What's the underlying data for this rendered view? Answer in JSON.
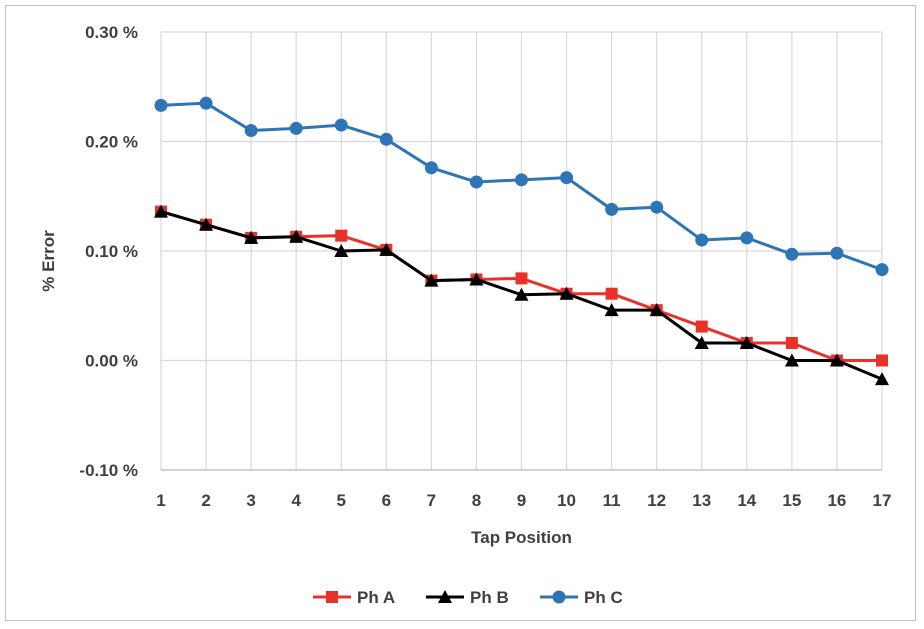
{
  "chart_data": {
    "type": "line",
    "title": "",
    "xlabel": "Tap Position",
    "ylabel": "% Error",
    "x": [
      1,
      2,
      3,
      4,
      5,
      6,
      7,
      8,
      9,
      10,
      11,
      12,
      13,
      14,
      15,
      16,
      17
    ],
    "ylim": [
      -0.1,
      0.3
    ],
    "ytick_values": [
      -0.1,
      0.0,
      0.1,
      0.2,
      0.3
    ],
    "ytick_labels": [
      "-0.10 %",
      "0.00 %",
      "0.10 %",
      "0.20 %",
      "0.30 %"
    ],
    "xtick_labels": [
      "1",
      "2",
      "3",
      "4",
      "5",
      "6",
      "7",
      "8",
      "9",
      "10",
      "11",
      "12",
      "13",
      "14",
      "15",
      "16",
      "17"
    ],
    "grid": true,
    "legend_position": "bottom",
    "series": [
      {
        "name": "Ph A",
        "color": "#e8312a",
        "marker": "square",
        "values": [
          0.136,
          0.124,
          0.112,
          0.113,
          0.114,
          0.101,
          0.073,
          0.074,
          0.075,
          0.061,
          0.061,
          0.046,
          0.031,
          0.016,
          0.016,
          0.0,
          0.0
        ]
      },
      {
        "name": "Ph B",
        "color": "#000000",
        "marker": "triangle",
        "values": [
          0.136,
          0.124,
          0.112,
          0.113,
          0.1,
          0.101,
          0.073,
          0.074,
          0.06,
          0.061,
          0.046,
          0.046,
          0.016,
          0.016,
          0.0,
          0.0,
          -0.017
        ]
      },
      {
        "name": "Ph C",
        "color": "#2e75b6",
        "marker": "circle",
        "values": [
          0.233,
          0.235,
          0.21,
          0.212,
          0.215,
          0.202,
          0.176,
          0.163,
          0.165,
          0.167,
          0.138,
          0.14,
          0.11,
          0.112,
          0.097,
          0.098,
          0.083
        ]
      }
    ]
  }
}
